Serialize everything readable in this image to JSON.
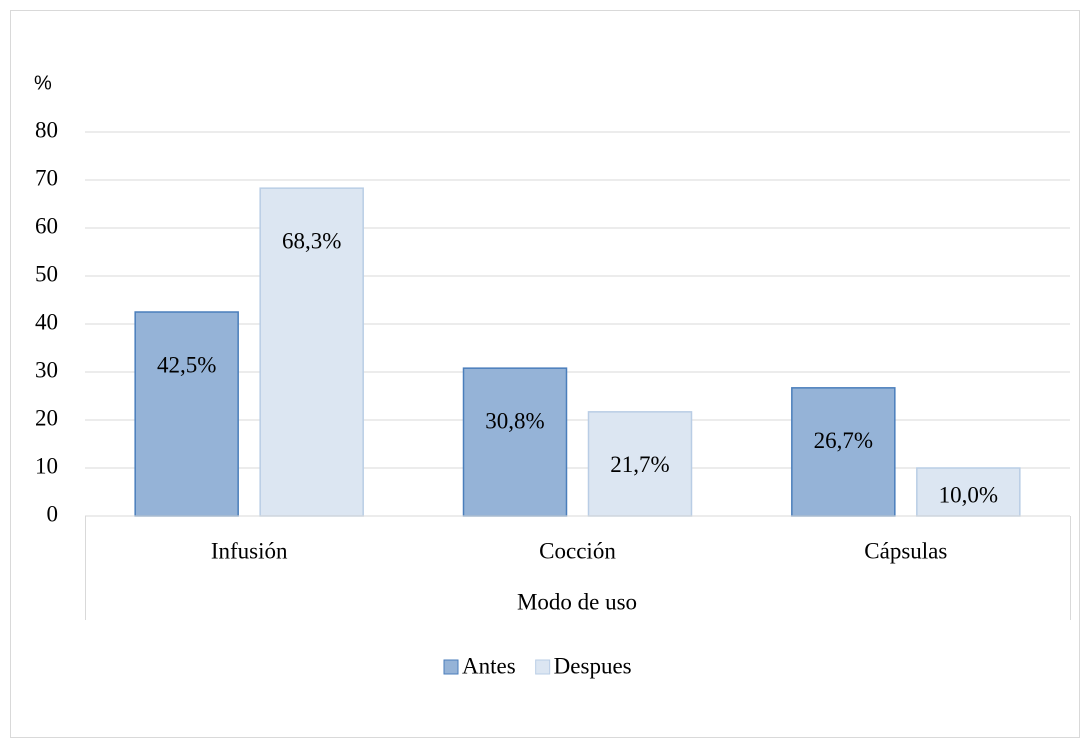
{
  "chart_data": {
    "type": "bar",
    "y_label": "%",
    "x_label": "Modo de uso",
    "categories": [
      "Infusión",
      "Cocción",
      "Cápsulas"
    ],
    "series": [
      {
        "name": "Antes",
        "color": "#95b3d7",
        "stroke": "#4a7ebb",
        "values": [
          42.5,
          30.8,
          26.7
        ],
        "value_labels": [
          "42,5%",
          "30,8%",
          "26,7%"
        ]
      },
      {
        "name": "Despues",
        "color": "#dce6f2",
        "stroke": "#b9cde5",
        "values": [
          68.3,
          21.7,
          10.0
        ],
        "value_labels": [
          "68,3%",
          "21,7%",
          "10,0%"
        ]
      }
    ],
    "ylim": [
      0,
      80
    ],
    "yticks": [
      0,
      10,
      20,
      30,
      40,
      50,
      60,
      70,
      80
    ],
    "grid": true,
    "legend": "bottom"
  }
}
